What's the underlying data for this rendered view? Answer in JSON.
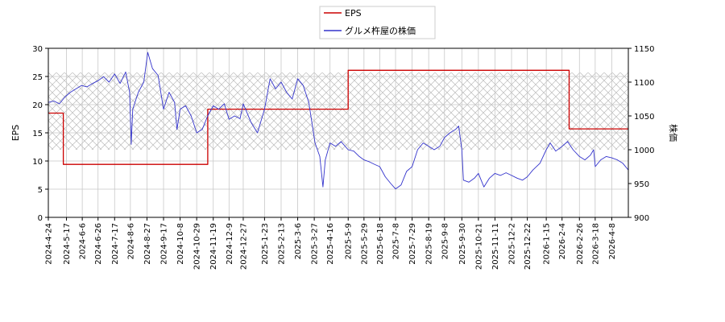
{
  "chart_data": {
    "type": "line",
    "legend": {
      "placement": "top-center",
      "items": [
        "EPS",
        "グルメ杵屋の株価"
      ]
    },
    "grid": true,
    "hatched_band": {
      "axis": "left",
      "from": 12,
      "to": 25.7
    },
    "x": {
      "range": [
        "2024-04-24",
        "2026-04-29"
      ],
      "tick_labels": [
        "2024-4-24",
        "2024-5-17",
        "2024-6-6",
        "2024-6-26",
        "2024-7-17",
        "2024-8-6",
        "2024-8-27",
        "2024-9-17",
        "2024-10-8",
        "2024-10-29",
        "2024-11-19",
        "2024-12-9",
        "2024-12-27",
        "2025-1-23",
        "2025-2-13",
        "2025-3-6",
        "2025-3-27",
        "2025-4-16",
        "2025-5-9",
        "2025-5-29",
        "2025-6-18",
        "2025-7-8",
        "2025-7-29",
        "2025-8-19",
        "2025-9-8",
        "2025-9-30",
        "2025-10-21",
        "2025-11-11",
        "2025-12-2",
        "2025-12-22",
        "2026-1-15",
        "2026-2-4",
        "2026-2-26",
        "2026-3-18",
        "2026-4-8"
      ]
    },
    "y_left": {
      "label": "EPS",
      "range": [
        0,
        30
      ],
      "ticks": [
        0,
        5,
        10,
        15,
        20,
        25,
        30
      ]
    },
    "y_right": {
      "label": "株価",
      "range": [
        900,
        1150
      ],
      "ticks": [
        900,
        950,
        1000,
        1050,
        1100,
        1150
      ]
    },
    "series": [
      {
        "name": "EPS",
        "axis": "left",
        "color": "#cc0000",
        "step": true,
        "points": [
          [
            "2024-04-24",
            18.5
          ],
          [
            "2024-05-13",
            18.5
          ],
          [
            "2024-05-13",
            9.4
          ],
          [
            "2024-11-12",
            9.4
          ],
          [
            "2024-11-12",
            19.2
          ],
          [
            "2025-05-09",
            19.2
          ],
          [
            "2025-05-09",
            26.1
          ],
          [
            "2026-02-13",
            26.1
          ],
          [
            "2026-02-13",
            15.7
          ],
          [
            "2026-04-29",
            15.7
          ]
        ]
      },
      {
        "name": "グルメ杵屋の株価",
        "axis": "right",
        "color": "#3333cc",
        "points": [
          [
            "2024-04-24",
            1070
          ],
          [
            "2024-05-01",
            1072
          ],
          [
            "2024-05-08",
            1068
          ],
          [
            "2024-05-15",
            1078
          ],
          [
            "2024-05-22",
            1085
          ],
          [
            "2024-05-29",
            1090
          ],
          [
            "2024-06-05",
            1095
          ],
          [
            "2024-06-12",
            1093
          ],
          [
            "2024-06-19",
            1098
          ],
          [
            "2024-06-26",
            1102
          ],
          [
            "2024-07-03",
            1108
          ],
          [
            "2024-07-10",
            1100
          ],
          [
            "2024-07-17",
            1112
          ],
          [
            "2024-07-24",
            1098
          ],
          [
            "2024-07-31",
            1115
          ],
          [
            "2024-08-05",
            1085
          ],
          [
            "2024-08-07",
            1008
          ],
          [
            "2024-08-09",
            1060
          ],
          [
            "2024-08-16",
            1085
          ],
          [
            "2024-08-23",
            1100
          ],
          [
            "2024-08-28",
            1144
          ],
          [
            "2024-09-03",
            1120
          ],
          [
            "2024-09-10",
            1110
          ],
          [
            "2024-09-17",
            1060
          ],
          [
            "2024-09-24",
            1085
          ],
          [
            "2024-10-01",
            1070
          ],
          [
            "2024-10-04",
            1030
          ],
          [
            "2024-10-08",
            1060
          ],
          [
            "2024-10-15",
            1065
          ],
          [
            "2024-10-22",
            1050
          ],
          [
            "2024-10-29",
            1025
          ],
          [
            "2024-11-05",
            1030
          ],
          [
            "2024-11-12",
            1050
          ],
          [
            "2024-11-19",
            1065
          ],
          [
            "2024-11-26",
            1060
          ],
          [
            "2024-12-03",
            1068
          ],
          [
            "2024-12-09",
            1045
          ],
          [
            "2024-12-16",
            1050
          ],
          [
            "2024-12-23",
            1046
          ],
          [
            "2024-12-27",
            1068
          ],
          [
            "2025-01-06",
            1040
          ],
          [
            "2025-01-14",
            1025
          ],
          [
            "2025-01-23",
            1060
          ],
          [
            "2025-01-30",
            1105
          ],
          [
            "2025-02-06",
            1090
          ],
          [
            "2025-02-13",
            1100
          ],
          [
            "2025-02-20",
            1085
          ],
          [
            "2025-02-27",
            1075
          ],
          [
            "2025-03-06",
            1105
          ],
          [
            "2025-03-13",
            1095
          ],
          [
            "2025-03-20",
            1070
          ],
          [
            "2025-03-24",
            1040
          ],
          [
            "2025-03-28",
            1010
          ],
          [
            "2025-04-03",
            990
          ],
          [
            "2025-04-07",
            945
          ],
          [
            "2025-04-10",
            985
          ],
          [
            "2025-04-16",
            1010
          ],
          [
            "2025-04-23",
            1005
          ],
          [
            "2025-04-30",
            1012
          ],
          [
            "2025-05-09",
            1000
          ],
          [
            "2025-05-16",
            998
          ],
          [
            "2025-05-23",
            990
          ],
          [
            "2025-05-29",
            985
          ],
          [
            "2025-06-05",
            982
          ],
          [
            "2025-06-12",
            978
          ],
          [
            "2025-06-18",
            975
          ],
          [
            "2025-06-25",
            960
          ],
          [
            "2025-07-02",
            950
          ],
          [
            "2025-07-08",
            942
          ],
          [
            "2025-07-15",
            948
          ],
          [
            "2025-07-22",
            968
          ],
          [
            "2025-07-29",
            975
          ],
          [
            "2025-08-05",
            1000
          ],
          [
            "2025-08-12",
            1010
          ],
          [
            "2025-08-19",
            1005
          ],
          [
            "2025-08-26",
            1000
          ],
          [
            "2025-09-02",
            1005
          ],
          [
            "2025-09-08",
            1018
          ],
          [
            "2025-09-15",
            1025
          ],
          [
            "2025-09-22",
            1030
          ],
          [
            "2025-09-26",
            1035
          ],
          [
            "2025-09-30",
            1000
          ],
          [
            "2025-10-02",
            955
          ],
          [
            "2025-10-09",
            952
          ],
          [
            "2025-10-16",
            958
          ],
          [
            "2025-10-21",
            965
          ],
          [
            "2025-10-28",
            945
          ],
          [
            "2025-11-04",
            958
          ],
          [
            "2025-11-11",
            965
          ],
          [
            "2025-11-18",
            962
          ],
          [
            "2025-11-25",
            966
          ],
          [
            "2025-12-02",
            962
          ],
          [
            "2025-12-09",
            958
          ],
          [
            "2025-12-16",
            955
          ],
          [
            "2025-12-22",
            960
          ],
          [
            "2025-12-29",
            970
          ],
          [
            "2026-01-07",
            980
          ],
          [
            "2026-01-15",
            1000
          ],
          [
            "2026-01-20",
            1010
          ],
          [
            "2026-01-27",
            998
          ],
          [
            "2026-02-04",
            1005
          ],
          [
            "2026-02-11",
            1012
          ],
          [
            "2026-02-18",
            1000
          ],
          [
            "2026-02-26",
            990
          ],
          [
            "2026-03-05",
            985
          ],
          [
            "2026-03-12",
            992
          ],
          [
            "2026-03-16",
            1000
          ],
          [
            "2026-03-18",
            975
          ],
          [
            "2026-03-25",
            985
          ],
          [
            "2026-04-01",
            990
          ],
          [
            "2026-04-08",
            988
          ],
          [
            "2026-04-15",
            985
          ],
          [
            "2026-04-22",
            980
          ],
          [
            "2026-04-29",
            970
          ]
        ]
      }
    ]
  }
}
